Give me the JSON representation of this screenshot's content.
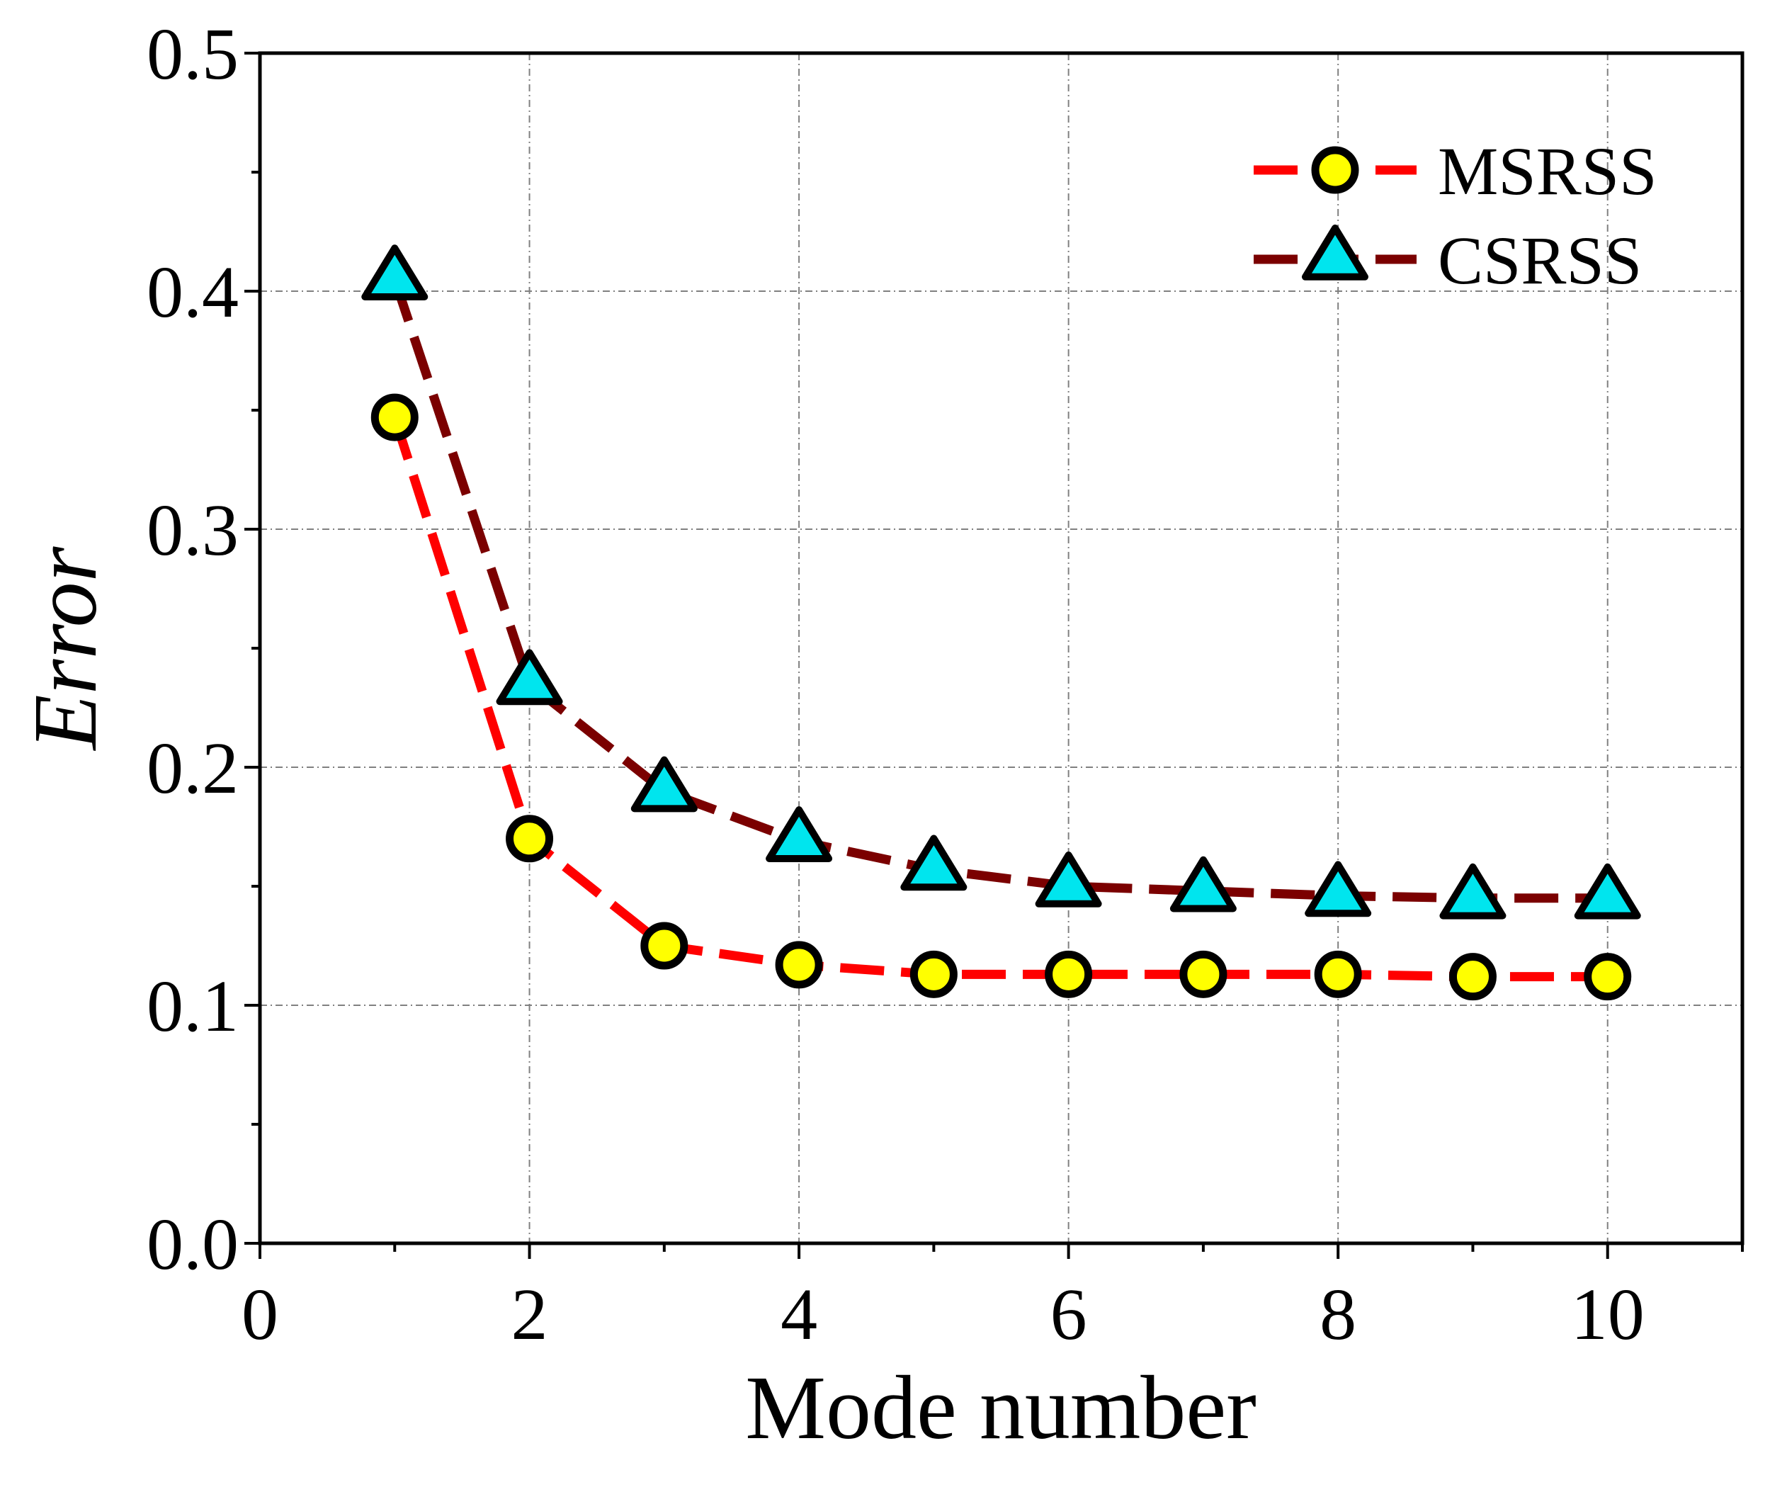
{
  "chart_data": {
    "type": "line",
    "title": "",
    "xlabel": "Mode number",
    "ylabel": "Error",
    "xlim": [
      0,
      11
    ],
    "ylim": [
      0.0,
      0.5
    ],
    "xticks": [
      0,
      2,
      4,
      6,
      8,
      10
    ],
    "xtick_labels": [
      "0",
      "2",
      "4",
      "6",
      "8",
      "10"
    ],
    "yticks": [
      0.0,
      0.1,
      0.2,
      0.3,
      0.4,
      0.5
    ],
    "ytick_labels": [
      "0.0",
      "0.1",
      "0.2",
      "0.3",
      "0.4",
      "0.5"
    ],
    "grid": true,
    "legend_position": "top-right",
    "x": [
      1,
      2,
      3,
      4,
      5,
      6,
      7,
      8,
      9,
      10
    ],
    "series": [
      {
        "name": "MSRSS",
        "marker": "circle",
        "line_color": "#ff0000",
        "marker_fill": "#ffff00",
        "values": [
          0.347,
          0.17,
          0.125,
          0.117,
          0.113,
          0.113,
          0.113,
          0.113,
          0.112,
          0.112
        ]
      },
      {
        "name": "CSRSS",
        "marker": "triangle",
        "line_color": "#7b0000",
        "marker_fill": "#00e5ee",
        "values": [
          0.405,
          0.235,
          0.19,
          0.169,
          0.157,
          0.15,
          0.148,
          0.146,
          0.145,
          0.145
        ]
      }
    ]
  }
}
